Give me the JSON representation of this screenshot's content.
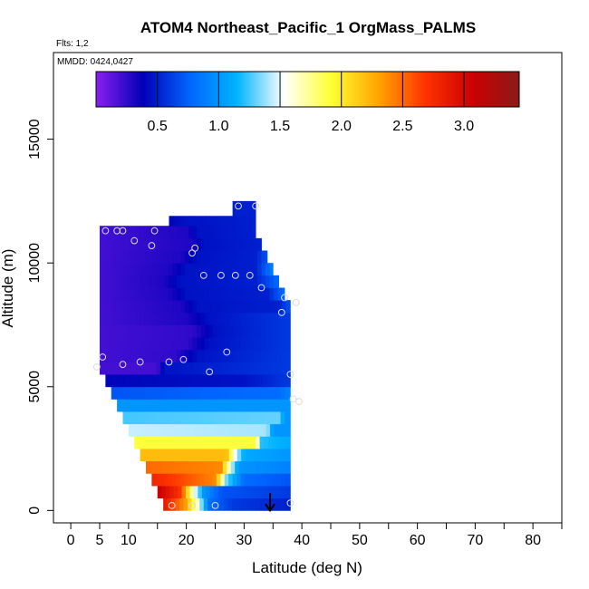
{
  "chart_data": {
    "type": "heatmap",
    "title": "ATOM4 Northeast_Pacific_1 OrgMass_PALMS",
    "flights_label": "Flts: 1,2",
    "dates_label": "MMDD: 0424,0427",
    "xlabel": "Latitude (deg N)",
    "ylabel": "Altitude (m)",
    "xlim": [
      -3,
      85
    ],
    "ylim": [
      -500,
      18500
    ],
    "x_ticks": [
      0,
      5,
      10,
      20,
      30,
      40,
      50,
      60,
      70,
      80
    ],
    "x_tick_labels": [
      "0",
      "5",
      "10",
      "20",
      "30",
      "40",
      "50",
      "60",
      "70",
      "80"
    ],
    "x_minor_ticks": [
      15,
      25,
      35,
      45,
      55,
      65,
      75,
      85
    ],
    "y_ticks": [
      0,
      5000,
      10000,
      15000
    ],
    "y_tick_labels": [
      "0",
      "5000",
      "10000",
      "15000"
    ],
    "colorbar": {
      "range": [
        0.0,
        3.45
      ],
      "ticks": [
        0.5,
        1.0,
        1.5,
        2.0,
        2.5,
        3.0
      ],
      "tick_labels": [
        "0.5",
        "1.0",
        "1.5",
        "2.0",
        "2.5",
        "3.0"
      ],
      "colors": [
        "#8a1ff0",
        "#0000b8",
        "#0066ff",
        "#00b4ff",
        "#ffffff",
        "#ffff33",
        "#ffa500",
        "#ff3300",
        "#cc0000",
        "#8b1a1a"
      ]
    },
    "curtain_rows": [
      {
        "y0": 0,
        "y1": 500,
        "x0": 16,
        "x1": 38,
        "stops": [
          [
            16,
            2.9
          ],
          [
            20,
            2.3
          ],
          [
            22,
            1.6
          ],
          [
            24,
            0.8
          ],
          [
            28,
            0.6
          ],
          [
            38,
            0.5
          ]
        ]
      },
      {
        "y0": 500,
        "y1": 1000,
        "x0": 15,
        "x1": 38,
        "stops": [
          [
            15,
            3.1
          ],
          [
            19,
            2.7
          ],
          [
            21,
            1.7
          ],
          [
            23,
            1.0
          ],
          [
            26,
            0.7
          ],
          [
            38,
            0.6
          ]
        ]
      },
      {
        "y0": 1000,
        "y1": 1500,
        "x0": 14,
        "x1": 38,
        "stops": [
          [
            14,
            2.8
          ],
          [
            25,
            2.4
          ],
          [
            27,
            1.3
          ],
          [
            30,
            0.8
          ],
          [
            38,
            0.7
          ]
        ]
      },
      {
        "y0": 1500,
        "y1": 2000,
        "x0": 13,
        "x1": 38,
        "stops": [
          [
            13,
            2.5
          ],
          [
            26,
            2.4
          ],
          [
            27.5,
            1.6
          ],
          [
            29,
            1.0
          ],
          [
            38,
            0.9
          ]
        ]
      },
      {
        "y0": 2000,
        "y1": 2500,
        "x0": 12,
        "x1": 38,
        "stops": [
          [
            12,
            2.2
          ],
          [
            27,
            2.2
          ],
          [
            28.5,
            1.5
          ],
          [
            30,
            1.1
          ],
          [
            38,
            1.0
          ]
        ]
      },
      {
        "y0": 2500,
        "y1": 3000,
        "x0": 11,
        "x1": 38,
        "stops": [
          [
            11,
            1.9
          ],
          [
            32,
            1.9
          ],
          [
            33,
            1.2
          ],
          [
            38,
            1.1
          ]
        ]
      },
      {
        "y0": 3000,
        "y1": 3500,
        "x0": 10,
        "x1": 38,
        "stops": [
          [
            10,
            1.45
          ],
          [
            34,
            1.4
          ],
          [
            35,
            1.0
          ],
          [
            38,
            1.0
          ]
        ]
      },
      {
        "y0": 3500,
        "y1": 4000,
        "x0": 9,
        "x1": 38,
        "stops": [
          [
            9,
            1.25
          ],
          [
            36,
            1.3
          ],
          [
            37,
            1.0
          ],
          [
            38,
            1.0
          ]
        ]
      },
      {
        "y0": 4000,
        "y1": 4500,
        "x0": 8,
        "x1": 38,
        "stops": [
          [
            8,
            1.0
          ],
          [
            38,
            1.0
          ]
        ]
      },
      {
        "y0": 4500,
        "y1": 5000,
        "x0": 7,
        "x1": 38,
        "stops": [
          [
            7,
            0.7
          ],
          [
            36,
            0.8
          ],
          [
            38,
            0.9
          ]
        ]
      },
      {
        "y0": 5000,
        "y1": 5500,
        "x0": 6,
        "x1": 38,
        "stops": [
          [
            6,
            0.4
          ],
          [
            30,
            0.45
          ],
          [
            38,
            0.6
          ]
        ]
      },
      {
        "y0": 5500,
        "y1": 6000,
        "x0": 5,
        "x1": 38,
        "stops": [
          [
            5,
            0.2
          ],
          [
            15,
            0.2
          ],
          [
            16,
            0.45
          ],
          [
            38,
            0.6
          ]
        ]
      },
      {
        "y0": 6000,
        "y1": 6500,
        "x0": 5,
        "x1": 38,
        "stops": [
          [
            5,
            0.2
          ],
          [
            18,
            0.25
          ],
          [
            22,
            0.45
          ],
          [
            38,
            0.6
          ]
        ]
      },
      {
        "y0": 6500,
        "y1": 7000,
        "x0": 5,
        "x1": 38,
        "stops": [
          [
            5,
            0.2
          ],
          [
            20,
            0.25
          ],
          [
            24,
            0.45
          ],
          [
            38,
            0.6
          ]
        ]
      },
      {
        "y0": 7000,
        "y1": 7500,
        "x0": 5,
        "x1": 38,
        "stops": [
          [
            5,
            0.2
          ],
          [
            21,
            0.25
          ],
          [
            25,
            0.45
          ],
          [
            38,
            0.6
          ]
        ]
      },
      {
        "y0": 7500,
        "y1": 8000,
        "x0": 5,
        "x1": 38,
        "stops": [
          [
            5,
            0.2
          ],
          [
            20,
            0.3
          ],
          [
            24,
            0.45
          ],
          [
            38,
            0.6
          ]
        ]
      },
      {
        "y0": 8000,
        "y1": 8500,
        "x0": 5,
        "x1": 38,
        "stops": [
          [
            5,
            0.2
          ],
          [
            19,
            0.3
          ],
          [
            22,
            0.45
          ],
          [
            36,
            0.5
          ],
          [
            38,
            0.7
          ]
        ]
      },
      {
        "y0": 8500,
        "y1": 9000,
        "x0": 5,
        "x1": 37,
        "stops": [
          [
            5,
            0.2
          ],
          [
            17,
            0.3
          ],
          [
            20,
            0.45
          ],
          [
            34,
            0.5
          ],
          [
            37,
            0.8
          ]
        ]
      },
      {
        "y0": 9000,
        "y1": 9500,
        "x0": 5,
        "x1": 36,
        "stops": [
          [
            5,
            0.2
          ],
          [
            16,
            0.3
          ],
          [
            19,
            0.45
          ],
          [
            32,
            0.5
          ],
          [
            36,
            0.8
          ]
        ]
      },
      {
        "y0": 9500,
        "y1": 10000,
        "x0": 5,
        "x1": 35,
        "stops": [
          [
            5,
            0.2
          ],
          [
            17,
            0.3
          ],
          [
            20,
            0.45
          ],
          [
            32,
            0.5
          ],
          [
            35,
            0.9
          ]
        ]
      },
      {
        "y0": 10000,
        "y1": 10500,
        "x0": 5,
        "x1": 34,
        "stops": [
          [
            5,
            0.2
          ],
          [
            19,
            0.3
          ],
          [
            22,
            0.45
          ],
          [
            32,
            0.5
          ],
          [
            34,
            0.7
          ]
        ]
      },
      {
        "y0": 10500,
        "y1": 11000,
        "x0": 5,
        "x1": 33,
        "stops": [
          [
            5,
            0.2
          ],
          [
            21,
            0.3
          ],
          [
            23,
            0.45
          ],
          [
            33,
            0.5
          ]
        ]
      },
      {
        "y0": 11000,
        "y1": 11500,
        "x0": 5,
        "x1": 32,
        "stops": [
          [
            5,
            0.2
          ],
          [
            20,
            0.3
          ],
          [
            22,
            0.45
          ],
          [
            32,
            0.5
          ]
        ]
      },
      {
        "y0": 11500,
        "y1": 11900,
        "x0": 17,
        "x1": 32,
        "stops": [
          [
            17,
            0.4
          ],
          [
            20,
            0.45
          ],
          [
            32,
            0.5
          ]
        ]
      },
      {
        "y0": 11900,
        "y1": 12500,
        "x0": 28,
        "x1": 32,
        "stops": [
          [
            28,
            0.5
          ],
          [
            32,
            0.5
          ]
        ]
      }
    ],
    "sample_points": [
      [
        4.5,
        5800
      ],
      [
        5.5,
        6200
      ],
      [
        9,
        5900
      ],
      [
        12,
        6000
      ],
      [
        17,
        6000
      ],
      [
        19.5,
        6100
      ],
      [
        24,
        5600
      ],
      [
        27,
        6400
      ],
      [
        6,
        11300
      ],
      [
        8,
        11300
      ],
      [
        9,
        11300
      ],
      [
        11,
        10900
      ],
      [
        14,
        10700
      ],
      [
        14.5,
        11300
      ],
      [
        21,
        10400
      ],
      [
        21.5,
        10600
      ],
      [
        23,
        9500
      ],
      [
        26,
        9500
      ],
      [
        28.5,
        9500
      ],
      [
        31,
        9500
      ],
      [
        29,
        12300
      ],
      [
        32,
        12300
      ],
      [
        33,
        9000
      ],
      [
        37,
        8600
      ],
      [
        36.5,
        8000
      ],
      [
        39,
        8400
      ],
      [
        38,
        5500
      ],
      [
        38.5,
        4500
      ],
      [
        39.5,
        4400
      ],
      [
        17.5,
        200
      ],
      [
        21,
        200
      ],
      [
        25,
        200
      ],
      [
        38,
        300
      ]
    ],
    "arrow": {
      "x": 34.5,
      "y_from": 700,
      "y_to": 0
    }
  }
}
